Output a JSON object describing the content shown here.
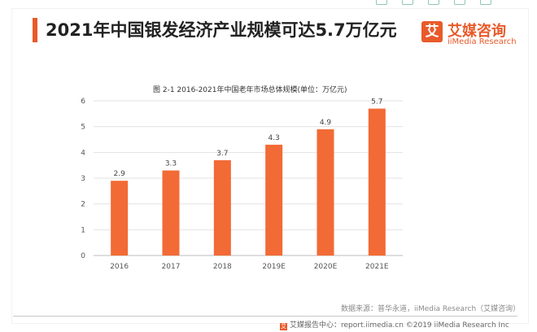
{
  "header": {
    "title": "2021年中国银发经济产业规模可达5.7万亿元",
    "accent_color": "#e85a2a"
  },
  "logo": {
    "mark": "艾",
    "name_cn": "艾媒咨询",
    "name_en": "iiMedia Research"
  },
  "chart_data": {
    "type": "bar",
    "title": "图 2-1 2016-2021年中国老年市场总体规模(单位：万亿元)",
    "categories": [
      "2016",
      "2017",
      "2018",
      "2019E",
      "2020E",
      "2021E"
    ],
    "values": [
      2.9,
      3.3,
      3.7,
      4.3,
      4.9,
      5.7
    ],
    "value_labels": [
      "2.9",
      "3.3",
      "3.7",
      "4.3",
      "4.9",
      "5.7"
    ],
    "ylim": [
      0,
      6
    ],
    "yticks": [
      0,
      1,
      2,
      3,
      4,
      5,
      6
    ],
    "grid": true,
    "bar_color": "#f26a35",
    "xlabel": "",
    "ylabel": ""
  },
  "source": "数据来源：普华永道，iiMedia Research（艾媒咨询）",
  "footer": {
    "icon": "艾",
    "text": "艾媒报告中心：report.iimedia.cn ©2019 iiMedia Research Inc"
  }
}
